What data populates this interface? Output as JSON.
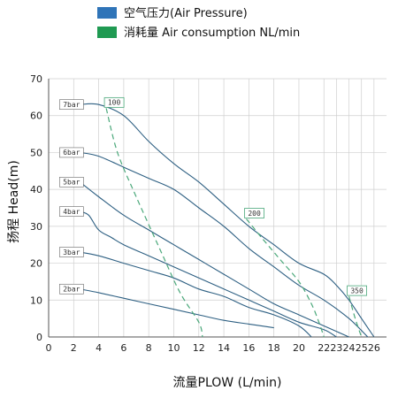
{
  "colors": {
    "pressure": "#2f74b8",
    "consumption": "#1f9a52",
    "curve": "#2d5f82",
    "airline": "#4aa87a",
    "grid": "#cfcfcf"
  },
  "chart_data": {
    "type": "line",
    "legend": [
      {
        "label": "空气压力(Air Pressure)",
        "color": "#2f74b8"
      },
      {
        "label": "消耗量 Air consumption NL/min",
        "color": "#1f9a52"
      }
    ],
    "xlabel": "流量PLOW (L/min)",
    "ylabel": "扬程 Head(m)",
    "xlim": [
      0,
      27
    ],
    "ylim": [
      0,
      70
    ],
    "xticks": [
      0,
      2,
      4,
      6,
      8,
      10,
      12,
      14,
      16,
      18,
      20,
      22,
      23,
      24,
      25,
      26
    ],
    "yticks": [
      0,
      10,
      20,
      30,
      40,
      50,
      60,
      70
    ],
    "grid": true,
    "series": [
      {
        "name": "7bar",
        "points": [
          [
            2.5,
            63
          ],
          [
            4,
            63
          ],
          [
            6,
            60
          ],
          [
            8,
            53
          ],
          [
            10,
            47
          ],
          [
            12,
            42
          ],
          [
            14,
            36
          ],
          [
            16,
            30
          ],
          [
            18,
            25
          ],
          [
            20,
            20
          ],
          [
            22,
            17
          ],
          [
            23,
            14
          ],
          [
            24,
            10
          ],
          [
            25,
            5
          ],
          [
            26,
            0
          ]
        ]
      },
      {
        "name": "6bar",
        "points": [
          [
            2.5,
            50
          ],
          [
            4,
            49
          ],
          [
            6,
            46
          ],
          [
            8,
            43
          ],
          [
            10,
            40
          ],
          [
            12,
            35
          ],
          [
            14,
            30
          ],
          [
            16,
            24
          ],
          [
            18,
            19
          ],
          [
            20,
            14
          ],
          [
            22,
            10
          ],
          [
            24,
            5
          ],
          [
            25.5,
            0
          ]
        ]
      },
      {
        "name": "5bar",
        "points": [
          [
            2.5,
            42
          ],
          [
            4,
            38
          ],
          [
            6,
            33
          ],
          [
            8,
            29
          ],
          [
            10,
            25
          ],
          [
            12,
            21
          ],
          [
            14,
            17
          ],
          [
            16,
            13
          ],
          [
            18,
            9
          ],
          [
            20,
            6
          ],
          [
            22,
            3
          ],
          [
            24,
            0
          ]
        ]
      },
      {
        "name": "4bar",
        "points": [
          [
            2.5,
            34
          ],
          [
            3.2,
            33
          ],
          [
            4,
            29
          ],
          [
            5,
            27
          ],
          [
            6,
            25
          ],
          [
            8,
            22
          ],
          [
            10,
            19
          ],
          [
            12,
            16
          ],
          [
            14,
            13
          ],
          [
            16,
            10
          ],
          [
            18,
            7
          ],
          [
            20,
            4
          ],
          [
            22,
            2
          ],
          [
            23,
            0
          ]
        ]
      },
      {
        "name": "3bar",
        "points": [
          [
            2.5,
            23
          ],
          [
            4,
            22
          ],
          [
            6,
            20
          ],
          [
            8,
            18
          ],
          [
            10,
            16
          ],
          [
            12,
            13
          ],
          [
            14,
            11
          ],
          [
            16,
            8
          ],
          [
            18,
            6
          ],
          [
            20,
            3
          ],
          [
            21,
            0
          ]
        ]
      },
      {
        "name": "2bar",
        "points": [
          [
            2.5,
            13
          ],
          [
            4,
            12
          ],
          [
            6,
            10.5
          ],
          [
            8,
            9
          ],
          [
            10,
            7.5
          ],
          [
            12,
            6
          ],
          [
            14,
            4.5
          ],
          [
            16,
            3.5
          ],
          [
            18,
            2.5
          ]
        ]
      }
    ],
    "consumption_lines": [
      {
        "name": "100",
        "points": [
          [
            4.6,
            62
          ],
          [
            5.5,
            50
          ],
          [
            7,
            38
          ],
          [
            9,
            23
          ],
          [
            10.5,
            12
          ],
          [
            12,
            4
          ],
          [
            12.3,
            0
          ]
        ]
      },
      {
        "name": "200",
        "points": [
          [
            15.8,
            32
          ],
          [
            17,
            27
          ],
          [
            18.5,
            21
          ],
          [
            20,
            15
          ],
          [
            21,
            9
          ],
          [
            21.6,
            4
          ],
          [
            22,
            0
          ]
        ]
      },
      {
        "name": "350",
        "points": [
          [
            24,
            11
          ],
          [
            24.5,
            5
          ],
          [
            25,
            0
          ]
        ]
      }
    ]
  }
}
